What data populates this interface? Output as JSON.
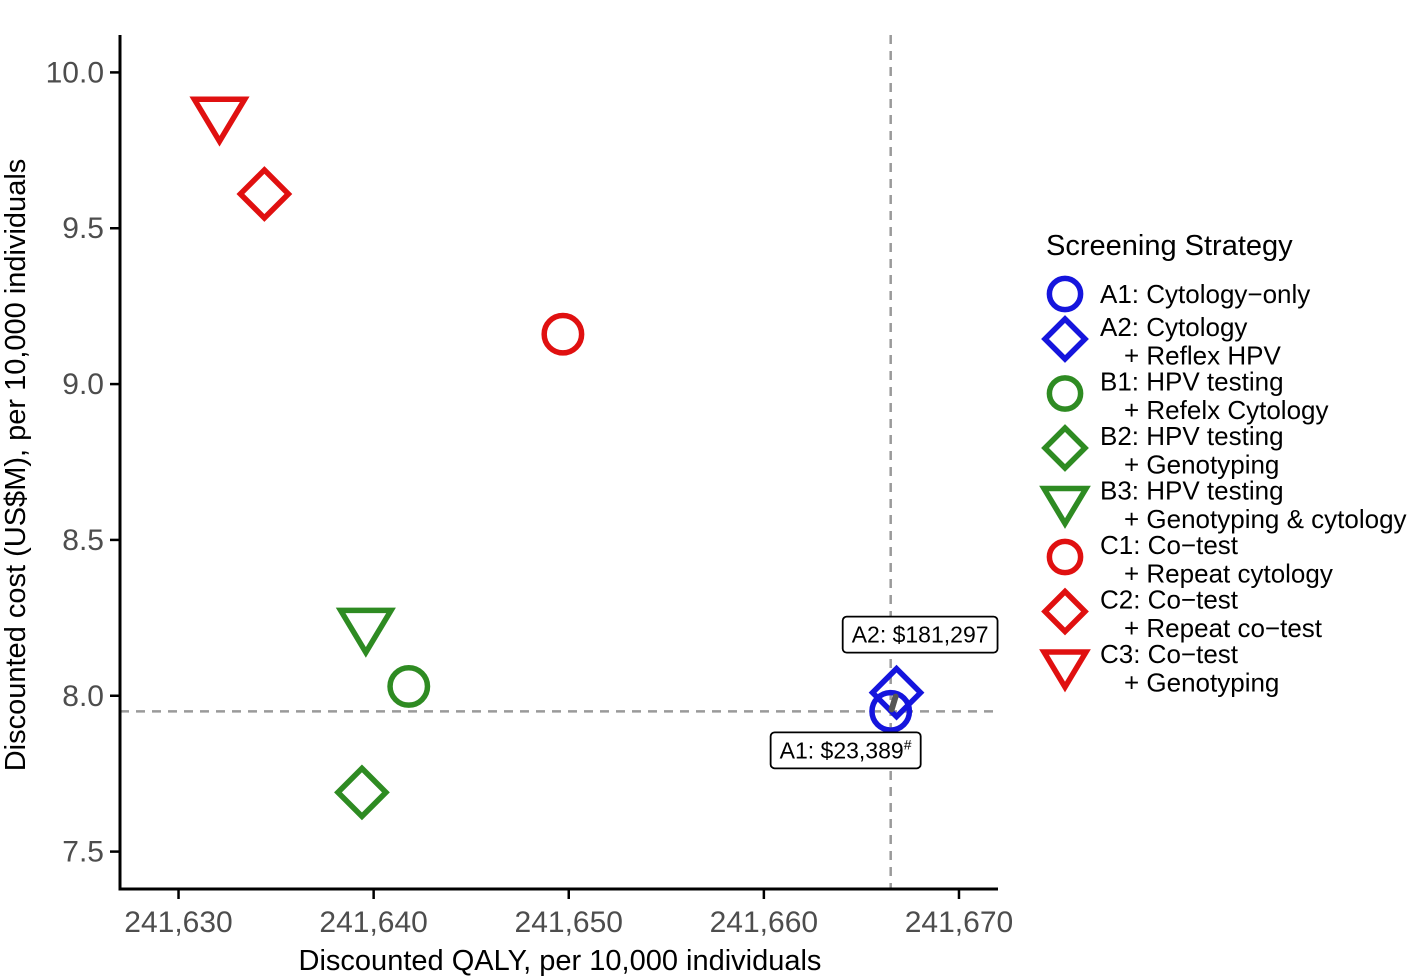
{
  "chart_data": {
    "type": "scatter",
    "xlabel": "Discounted QALY, per 10,000 individuals",
    "ylabel": "Discounted cost (US$M), per 10,000 individuals",
    "xlim": [
      241627,
      241672
    ],
    "ylim": [
      7.38,
      10.12
    ],
    "x_ticks": [
      241630,
      241640,
      241650,
      241660,
      241670
    ],
    "x_tick_labels": [
      "241,630",
      "241,640",
      "241,650",
      "241,660",
      "241,670"
    ],
    "y_ticks": [
      7.5,
      8.0,
      8.5,
      9.0,
      9.5,
      10.0
    ],
    "y_tick_labels": [
      "7.5",
      "8.0",
      "8.5",
      "9.0",
      "9.5",
      "10.0"
    ],
    "grid": false,
    "reference_lines": {
      "x": 241666.5,
      "y": 7.95
    },
    "legend": {
      "title": "Screening Strategy",
      "placement": "right",
      "entries": [
        {
          "lines": [
            "A1: Cytology−only"
          ],
          "marker": "circle",
          "color": "#1515dd"
        },
        {
          "lines": [
            "A2: Cytology",
            "+ Reflex HPV"
          ],
          "marker": "diamond",
          "color": "#1515dd"
        },
        {
          "lines": [
            "B1: HPV testing",
            "+ Refelx Cytology"
          ],
          "marker": "circle",
          "color": "#2e8b22"
        },
        {
          "lines": [
            "B2: HPV testing",
            "+ Genotyping"
          ],
          "marker": "diamond",
          "color": "#2e8b22"
        },
        {
          "lines": [
            "B3: HPV testing",
            "+ Genotyping & cytology"
          ],
          "marker": "triangle-down",
          "color": "#2e8b22"
        },
        {
          "lines": [
            "C1: Co−test",
            "+ Repeat cytology"
          ],
          "marker": "circle",
          "color": "#e01010"
        },
        {
          "lines": [
            "C2: Co−test",
            "+ Repeat co−test"
          ],
          "marker": "diamond",
          "color": "#e01010"
        },
        {
          "lines": [
            "C3: Co−test",
            "+ Genotyping"
          ],
          "marker": "triangle-down",
          "color": "#e01010"
        }
      ]
    },
    "series": [
      {
        "id": "A1",
        "marker": "circle",
        "color": "#1515dd",
        "x": 241666.5,
        "y": 7.95
      },
      {
        "id": "A2",
        "marker": "diamond",
        "color": "#1515dd",
        "x": 241666.8,
        "y": 8.01
      },
      {
        "id": "B1",
        "marker": "circle",
        "color": "#2e8b22",
        "x": 241641.8,
        "y": 8.03
      },
      {
        "id": "B2",
        "marker": "diamond",
        "color": "#2e8b22",
        "x": 241639.4,
        "y": 7.69
      },
      {
        "id": "B3",
        "marker": "triangle-down",
        "color": "#2e8b22",
        "x": 241639.6,
        "y": 8.22
      },
      {
        "id": "C1",
        "marker": "circle",
        "color": "#e01010",
        "x": 241649.7,
        "y": 9.16
      },
      {
        "id": "C2",
        "marker": "diamond",
        "color": "#e01010",
        "x": 241634.4,
        "y": 9.61
      },
      {
        "id": "C3",
        "marker": "triangle-down",
        "color": "#e01010",
        "x": 241632.1,
        "y": 9.86
      }
    ],
    "annotations": [
      {
        "id": "A2",
        "text": "A2: $181,297",
        "sup": "",
        "position": "above-left"
      },
      {
        "id": "A1",
        "text": "A1: $23,389",
        "sup": "#",
        "position": "below-left"
      }
    ],
    "arrow": {
      "from": "A1",
      "to": "A2",
      "color": "#555555"
    }
  }
}
